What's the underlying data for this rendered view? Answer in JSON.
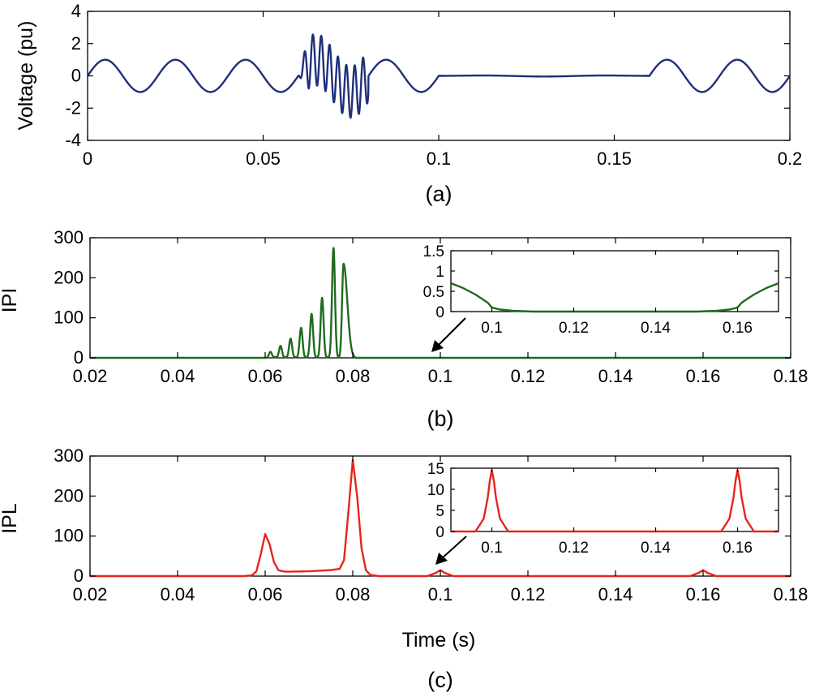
{
  "chart_data": [
    {
      "id": "a",
      "type": "line",
      "panel_label": "(a)",
      "ylabel": "Voltage (pu)",
      "xlabel": "",
      "xlim": [
        0,
        0.2
      ],
      "ylim": [
        -4,
        4
      ],
      "xticks": [
        0,
        0.05,
        0.1,
        0.15,
        0.2
      ],
      "xtick_labels": [
        "0",
        "0.05",
        "0.1",
        "0.15",
        "0.2"
      ],
      "yticks": [
        -4,
        -2,
        0,
        2,
        4
      ],
      "ytick_labels": [
        "-4",
        "-2",
        "0",
        "2",
        "4"
      ],
      "series": [
        {
          "name": "voltage",
          "color": "#1f2f7a",
          "description": "50 Hz sine, amplitude 1 pu; oscillatory transient 0.06-0.08 s (peaks ~+2 / ~-2.7); sag to ~0 pu 0.10-0.16 s; recovery after 0.16 s",
          "model": {
            "base_freq_hz": 50,
            "amplitude": 1.0,
            "transient_start": 0.06,
            "transient_end": 0.08,
            "transient_freq_hz": 420,
            "sag_start": 0.1,
            "sag_end": 0.16
          }
        }
      ]
    },
    {
      "id": "b",
      "type": "line",
      "panel_label": "(b)",
      "ylabel": "IPI",
      "xlabel": "",
      "xlim": [
        0.02,
        0.18
      ],
      "ylim": [
        0,
        300
      ],
      "xticks": [
        0.02,
        0.04,
        0.06,
        0.08,
        0.1,
        0.12,
        0.14,
        0.16,
        0.18
      ],
      "xtick_labels": [
        "0.02",
        "0.04",
        "0.06",
        "0.08",
        "0.1",
        "0.12",
        "0.14",
        "0.16",
        "0.18"
      ],
      "yticks": [
        0,
        100,
        200,
        300
      ],
      "ytick_labels": [
        "0",
        "100",
        "200",
        "300"
      ],
      "series": [
        {
          "name": "IPI",
          "color": "#1e6b1e",
          "peaks": [
            {
              "x": 0.0612,
              "y": 15
            },
            {
              "x": 0.0635,
              "y": 30
            },
            {
              "x": 0.0658,
              "y": 48
            },
            {
              "x": 0.0682,
              "y": 75
            },
            {
              "x": 0.0706,
              "y": 110
            },
            {
              "x": 0.073,
              "y": 150
            },
            {
              "x": 0.0756,
              "y": 275
            },
            {
              "x": 0.0779,
              "y": 235
            }
          ],
          "baseline_after": 0.0
        }
      ],
      "inset": {
        "xlim": [
          0.09,
          0.17
        ],
        "ylim": [
          0,
          1.5
        ],
        "xticks": [
          0.1,
          0.12,
          0.14,
          0.16
        ],
        "xtick_labels": [
          "0.1",
          "0.12",
          "0.14",
          "0.16"
        ],
        "yticks": [
          0,
          0.5,
          1,
          1.5
        ],
        "ytick_labels": [
          "0",
          "0.5",
          "1",
          "1.5"
        ],
        "x": [
          0.09,
          0.093,
          0.096,
          0.099,
          0.1,
          0.102,
          0.105,
          0.11,
          0.12,
          0.13,
          0.14,
          0.15,
          0.155,
          0.158,
          0.16,
          0.161,
          0.164,
          0.167,
          0.17
        ],
        "y": [
          0.7,
          0.58,
          0.42,
          0.22,
          0.1,
          0.05,
          0.02,
          0.0,
          0.0,
          0.0,
          0.0,
          0.0,
          0.02,
          0.05,
          0.1,
          0.22,
          0.42,
          0.58,
          0.7
        ]
      }
    },
    {
      "id": "c",
      "type": "line",
      "panel_label": "(c)",
      "ylabel": "IPL",
      "xlabel": "Time (s)",
      "xlim": [
        0.02,
        0.18
      ],
      "ylim": [
        0,
        300
      ],
      "xticks": [
        0.02,
        0.04,
        0.06,
        0.08,
        0.1,
        0.12,
        0.14,
        0.16,
        0.18
      ],
      "xtick_labels": [
        "0.02",
        "0.04",
        "0.06",
        "0.08",
        "0.1",
        "0.12",
        "0.14",
        "0.16",
        "0.18"
      ],
      "yticks": [
        0,
        100,
        200,
        300
      ],
      "ytick_labels": [
        "0",
        "100",
        "200",
        "300"
      ],
      "series": [
        {
          "name": "IPL",
          "color": "#e8231e",
          "x": [
            0.02,
            0.055,
            0.057,
            0.058,
            0.059,
            0.06,
            0.061,
            0.062,
            0.063,
            0.064,
            0.065,
            0.07,
            0.075,
            0.077,
            0.078,
            0.079,
            0.08,
            0.081,
            0.082,
            0.083,
            0.084,
            0.086,
            0.097,
            0.099,
            0.1,
            0.101,
            0.103,
            0.157,
            0.159,
            0.16,
            0.161,
            0.163,
            0.18
          ],
          "y": [
            0,
            0,
            2,
            12,
            55,
            105,
            80,
            35,
            15,
            12,
            11,
            12,
            15,
            18,
            40,
            160,
            290,
            200,
            70,
            15,
            3,
            0,
            0,
            8,
            15,
            8,
            0,
            0,
            8,
            15,
            8,
            0,
            0
          ]
        }
      ],
      "inset": {
        "xlim": [
          0.09,
          0.17
        ],
        "ylim": [
          0,
          15
        ],
        "xticks": [
          0.1,
          0.12,
          0.14,
          0.16
        ],
        "xtick_labels": [
          "0.1",
          "0.12",
          "0.14",
          "0.16"
        ],
        "yticks": [
          0,
          5,
          10,
          15
        ],
        "ytick_labels": [
          "0",
          "5",
          "10",
          "15"
        ],
        "x": [
          0.09,
          0.096,
          0.098,
          0.099,
          0.0995,
          0.1,
          0.1005,
          0.101,
          0.102,
          0.104,
          0.156,
          0.158,
          0.159,
          0.1595,
          0.16,
          0.1605,
          0.161,
          0.162,
          0.164,
          0.17
        ],
        "y": [
          0,
          0,
          3,
          8,
          12,
          14.5,
          12,
          8,
          3,
          0,
          0,
          3,
          8,
          12,
          14.5,
          12,
          8,
          3,
          0,
          0
        ]
      }
    }
  ]
}
